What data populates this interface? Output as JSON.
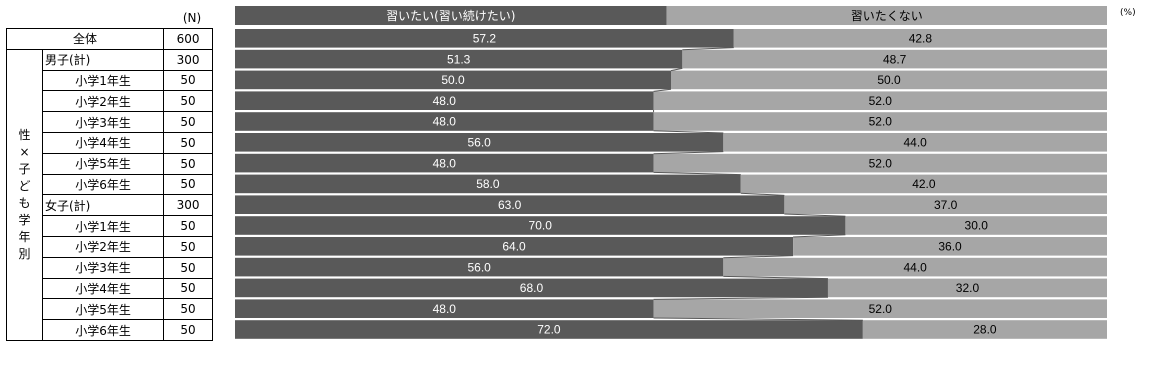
{
  "n_header": "(N)",
  "percent_unit": "(%)",
  "group_label": "性×子ども学年別",
  "chart_data": {
    "type": "bar",
    "stacked": true,
    "orientation": "horizontal",
    "xlim": [
      0,
      100
    ],
    "series": [
      {
        "name": "習いたい(習い続けたい)",
        "color": "#595959",
        "values": [
          57.2,
          51.3,
          50.0,
          48.0,
          48.0,
          56.0,
          48.0,
          58.0,
          63.0,
          70.0,
          64.0,
          56.0,
          68.0,
          48.0,
          72.0
        ]
      },
      {
        "name": "習いたくない",
        "color": "#a6a6a6",
        "values": [
          42.8,
          48.7,
          50.0,
          52.0,
          52.0,
          44.0,
          52.0,
          42.0,
          37.0,
          30.0,
          36.0,
          44.0,
          32.0,
          52.0,
          28.0
        ]
      }
    ],
    "categories": [
      "全体",
      "男子(計)",
      "小学1年生",
      "小学2年生",
      "小学3年生",
      "小学4年生",
      "小学5年生",
      "小学6年生",
      "女子(計)",
      "小学1年生",
      "小学2年生",
      "小学3年生",
      "小学4年生",
      "小学5年生",
      "小学6年生"
    ],
    "n_values": [
      600,
      300,
      50,
      50,
      50,
      50,
      50,
      50,
      300,
      50,
      50,
      50,
      50,
      50,
      50
    ]
  }
}
